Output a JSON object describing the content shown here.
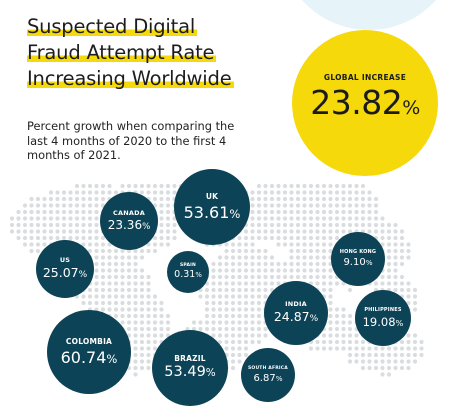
{
  "title_lines": [
    "Suspected Digital",
    "Fraud Attempt Rate",
    "Increasing Worldwide"
  ],
  "subtitle": "Percent growth when comparing the last 4 months of 2020 to the first 4 months of 2021.",
  "global": {
    "label": "GLOBAL INCREASE",
    "value": "23.82",
    "unit": "%"
  },
  "colors": {
    "bubble": "#0d4356",
    "accent": "#f5d90a",
    "dots": "#d9dde0"
  },
  "chart_data": {
    "type": "bubble",
    "unit": "%",
    "countries": [
      {
        "name": "UK",
        "value": 53.61,
        "display": "53.61"
      },
      {
        "name": "CANADA",
        "value": 23.36,
        "display": "23.36"
      },
      {
        "name": "US",
        "value": 25.07,
        "display": "25.07"
      },
      {
        "name": "SPAIN",
        "value": 0.31,
        "display": "0.31"
      },
      {
        "name": "HONG KONG",
        "value": 9.1,
        "display": "9.10"
      },
      {
        "name": "INDIA",
        "value": 24.87,
        "display": "24.87"
      },
      {
        "name": "PHILIPPINES",
        "value": 19.08,
        "display": "19.08"
      },
      {
        "name": "COLOMBIA",
        "value": 60.74,
        "display": "60.74"
      },
      {
        "name": "BRAZIL",
        "value": 53.49,
        "display": "53.49"
      },
      {
        "name": "SOUTH AFRICA",
        "value": 6.87,
        "display": "6.87"
      }
    ]
  }
}
